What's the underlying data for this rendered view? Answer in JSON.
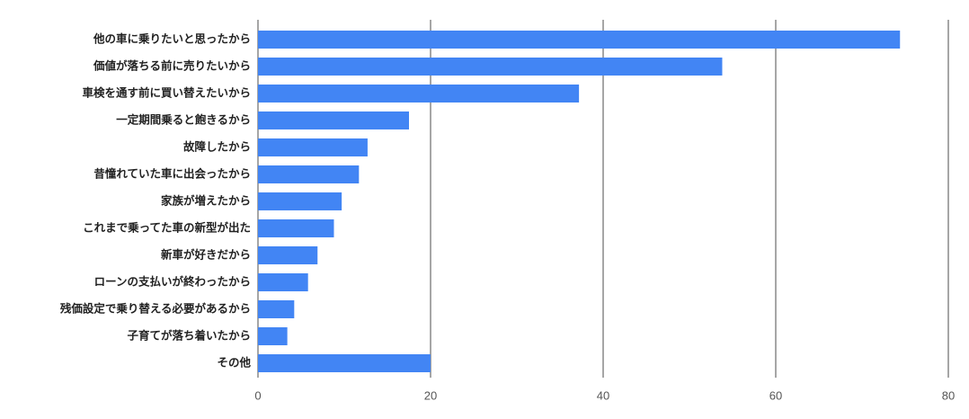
{
  "chart_data": {
    "type": "bar",
    "orientation": "horizontal",
    "categories": [
      "他の車に乗りたいと思ったから",
      "価値が落ちる前に売りたいから",
      "車検を通す前に買い替えたいから",
      "一定期間乗ると飽きるから",
      "故障したから",
      "昔憧れていた車に出会ったから",
      "家族が増えたから",
      "これまで乗ってた車の新型が出た",
      "新車が好きだから",
      "ローンの支払いが終わったから",
      "残価設定で乗り替える必要があるから",
      "子育てが落ち着いたから",
      "その他"
    ],
    "values": [
      74.4,
      53.8,
      37.2,
      17.5,
      12.7,
      11.7,
      9.7,
      8.8,
      6.9,
      5.8,
      4.2,
      3.4,
      20.0
    ],
    "color": "#4285f4",
    "xlim": [
      0,
      80
    ],
    "xticks": [
      0,
      20,
      40,
      60,
      80
    ],
    "grid": true
  }
}
